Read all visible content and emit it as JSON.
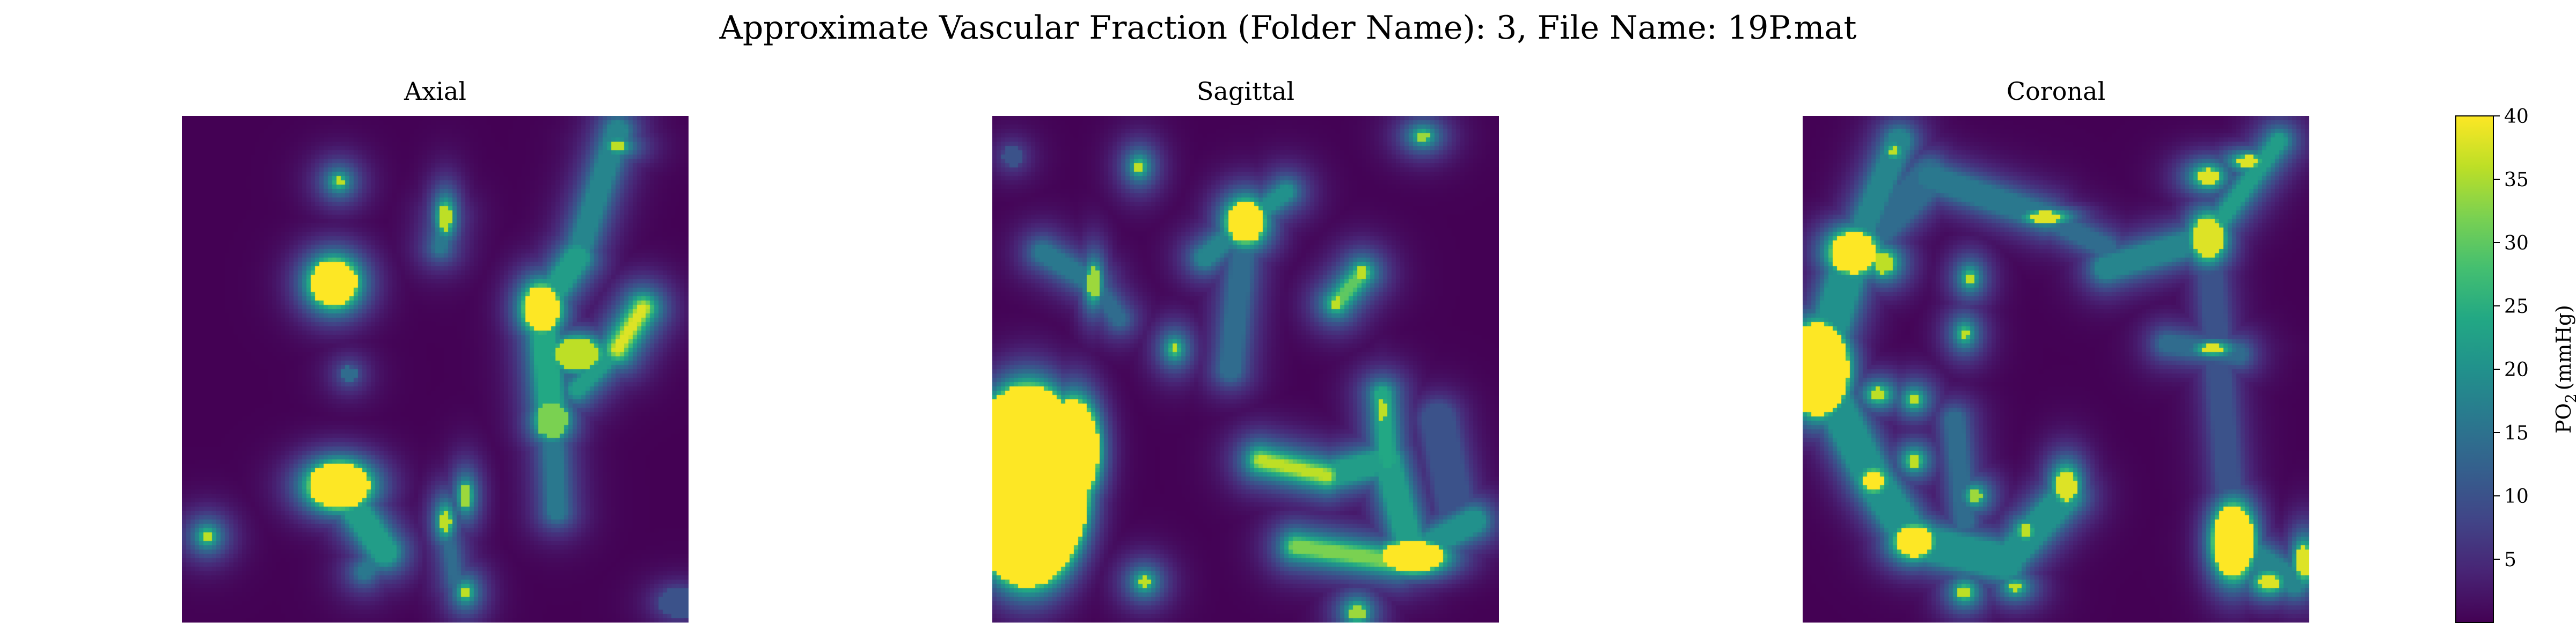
{
  "chart_data": {
    "type": "heatmap",
    "title": "Approximate Vascular Fraction (Folder Name): 3, File Name: 19P.mat",
    "panels": [
      {
        "title": "Axial",
        "blobs": [
          {
            "x": 0.3,
            "y": 0.33,
            "rx": 0.045,
            "ry": 0.045,
            "v": 40
          },
          {
            "x": 0.31,
            "y": 0.73,
            "rx": 0.06,
            "ry": 0.045,
            "v": 40
          },
          {
            "x": 0.71,
            "y": 0.38,
            "rx": 0.035,
            "ry": 0.045,
            "v": 40
          },
          {
            "x": 0.78,
            "y": 0.47,
            "rx": 0.045,
            "ry": 0.03,
            "v": 36
          },
          {
            "x": 0.73,
            "y": 0.6,
            "rx": 0.03,
            "ry": 0.035,
            "v": 32
          },
          {
            "x": 0.52,
            "y": 0.2,
            "rx": 0.012,
            "ry": 0.025,
            "v": 36
          },
          {
            "x": 0.31,
            "y": 0.13,
            "rx": 0.008,
            "ry": 0.008,
            "v": 36
          },
          {
            "x": 0.86,
            "y": 0.06,
            "rx": 0.012,
            "ry": 0.008,
            "v": 36
          },
          {
            "x": 0.05,
            "y": 0.83,
            "rx": 0.01,
            "ry": 0.01,
            "v": 36
          },
          {
            "x": 0.52,
            "y": 0.8,
            "rx": 0.01,
            "ry": 0.02,
            "v": 36
          },
          {
            "x": 0.56,
            "y": 0.75,
            "rx": 0.01,
            "ry": 0.02,
            "v": 34
          },
          {
            "x": 0.56,
            "y": 0.94,
            "rx": 0.008,
            "ry": 0.01,
            "v": 36
          },
          {
            "x": 0.33,
            "y": 0.51,
            "rx": 0.015,
            "ry": 0.015,
            "v": 14
          },
          {
            "x": 0.98,
            "y": 0.96,
            "rx": 0.04,
            "ry": 0.03,
            "v": 10
          }
        ],
        "lines": [
          {
            "x1": 0.86,
            "y1": 0.03,
            "x2": 0.78,
            "y2": 0.28,
            "w": 0.018,
            "v": 18
          },
          {
            "x1": 0.78,
            "y1": 0.28,
            "x2": 0.71,
            "y2": 0.38,
            "w": 0.02,
            "v": 22
          },
          {
            "x1": 0.71,
            "y1": 0.38,
            "x2": 0.73,
            "y2": 0.6,
            "w": 0.02,
            "v": 24
          },
          {
            "x1": 0.73,
            "y1": 0.6,
            "x2": 0.74,
            "y2": 0.78,
            "w": 0.015,
            "v": 16
          },
          {
            "x1": 0.91,
            "y1": 0.38,
            "x2": 0.86,
            "y2": 0.46,
            "w": 0.008,
            "v": 38
          },
          {
            "x1": 0.86,
            "y1": 0.46,
            "x2": 0.78,
            "y2": 0.54,
            "w": 0.012,
            "v": 22
          },
          {
            "x1": 0.31,
            "y1": 0.73,
            "x2": 0.4,
            "y2": 0.86,
            "w": 0.022,
            "v": 22
          },
          {
            "x1": 0.4,
            "y1": 0.86,
            "x2": 0.36,
            "y2": 0.9,
            "w": 0.012,
            "v": 16
          },
          {
            "x1": 0.52,
            "y1": 0.2,
            "x2": 0.51,
            "y2": 0.26,
            "w": 0.01,
            "v": 16
          },
          {
            "x1": 0.52,
            "y1": 0.8,
            "x2": 0.54,
            "y2": 0.92,
            "w": 0.008,
            "v": 14
          }
        ]
      },
      {
        "title": "Sagittal",
        "blobs": [
          {
            "x": 0.07,
            "y": 0.73,
            "rx": 0.12,
            "ry": 0.2,
            "v": 40
          },
          {
            "x": 0.16,
            "y": 0.66,
            "rx": 0.05,
            "ry": 0.1,
            "v": 40
          },
          {
            "x": 0.5,
            "y": 0.21,
            "rx": 0.035,
            "ry": 0.04,
            "v": 40
          },
          {
            "x": 0.2,
            "y": 0.33,
            "rx": 0.012,
            "ry": 0.03,
            "v": 34
          },
          {
            "x": 0.29,
            "y": 0.1,
            "rx": 0.008,
            "ry": 0.01,
            "v": 36
          },
          {
            "x": 0.85,
            "y": 0.04,
            "rx": 0.012,
            "ry": 0.01,
            "v": 34
          },
          {
            "x": 0.73,
            "y": 0.31,
            "rx": 0.01,
            "ry": 0.012,
            "v": 36
          },
          {
            "x": 0.68,
            "y": 0.37,
            "rx": 0.01,
            "ry": 0.012,
            "v": 36
          },
          {
            "x": 0.36,
            "y": 0.46,
            "rx": 0.008,
            "ry": 0.01,
            "v": 36
          },
          {
            "x": 0.77,
            "y": 0.58,
            "rx": 0.008,
            "ry": 0.02,
            "v": 36
          },
          {
            "x": 0.83,
            "y": 0.87,
            "rx": 0.06,
            "ry": 0.03,
            "v": 40
          },
          {
            "x": 0.3,
            "y": 0.92,
            "rx": 0.01,
            "ry": 0.01,
            "v": 36
          },
          {
            "x": 0.72,
            "y": 0.98,
            "rx": 0.015,
            "ry": 0.015,
            "v": 34
          },
          {
            "x": 0.04,
            "y": 0.08,
            "rx": 0.02,
            "ry": 0.02,
            "v": 10
          }
        ],
        "lines": [
          {
            "x1": 0.1,
            "y1": 0.27,
            "x2": 0.2,
            "y2": 0.33,
            "w": 0.015,
            "v": 16
          },
          {
            "x1": 0.2,
            "y1": 0.33,
            "x2": 0.25,
            "y2": 0.4,
            "w": 0.012,
            "v": 14
          },
          {
            "x1": 0.42,
            "y1": 0.28,
            "x2": 0.5,
            "y2": 0.21,
            "w": 0.015,
            "v": 18
          },
          {
            "x1": 0.5,
            "y1": 0.21,
            "x2": 0.58,
            "y2": 0.15,
            "w": 0.012,
            "v": 20
          },
          {
            "x1": 0.5,
            "y1": 0.21,
            "x2": 0.47,
            "y2": 0.5,
            "w": 0.018,
            "v": 14
          },
          {
            "x1": 0.68,
            "y1": 0.37,
            "x2": 0.73,
            "y2": 0.31,
            "w": 0.008,
            "v": 30
          },
          {
            "x1": 0.53,
            "y1": 0.68,
            "x2": 0.66,
            "y2": 0.71,
            "w": 0.008,
            "v": 36
          },
          {
            "x1": 0.66,
            "y1": 0.71,
            "x2": 0.78,
            "y2": 0.68,
            "w": 0.02,
            "v": 22
          },
          {
            "x1": 0.78,
            "y1": 0.68,
            "x2": 0.77,
            "y2": 0.55,
            "w": 0.012,
            "v": 24
          },
          {
            "x1": 0.78,
            "y1": 0.68,
            "x2": 0.83,
            "y2": 0.87,
            "w": 0.022,
            "v": 22
          },
          {
            "x1": 0.6,
            "y1": 0.85,
            "x2": 0.8,
            "y2": 0.88,
            "w": 0.01,
            "v": 32
          },
          {
            "x1": 0.8,
            "y1": 0.88,
            "x2": 0.95,
            "y2": 0.8,
            "w": 0.02,
            "v": 20
          },
          {
            "x1": 0.88,
            "y1": 0.6,
            "x2": 0.92,
            "y2": 0.8,
            "w": 0.03,
            "v": 10
          }
        ]
      },
      {
        "title": "Coronal",
        "blobs": [
          {
            "x": 0.03,
            "y": 0.5,
            "rx": 0.06,
            "ry": 0.09,
            "v": 40
          },
          {
            "x": 0.1,
            "y": 0.27,
            "rx": 0.045,
            "ry": 0.04,
            "v": 40
          },
          {
            "x": 0.16,
            "y": 0.29,
            "rx": 0.02,
            "ry": 0.02,
            "v": 36
          },
          {
            "x": 0.15,
            "y": 0.55,
            "rx": 0.015,
            "ry": 0.012,
            "v": 36
          },
          {
            "x": 0.22,
            "y": 0.56,
            "rx": 0.01,
            "ry": 0.01,
            "v": 36
          },
          {
            "x": 0.14,
            "y": 0.72,
            "rx": 0.02,
            "ry": 0.02,
            "v": 40
          },
          {
            "x": 0.22,
            "y": 0.68,
            "rx": 0.012,
            "ry": 0.012,
            "v": 36
          },
          {
            "x": 0.22,
            "y": 0.84,
            "rx": 0.035,
            "ry": 0.03,
            "v": 40
          },
          {
            "x": 0.32,
            "y": 0.94,
            "rx": 0.012,
            "ry": 0.012,
            "v": 36
          },
          {
            "x": 0.34,
            "y": 0.75,
            "rx": 0.012,
            "ry": 0.012,
            "v": 34
          },
          {
            "x": 0.44,
            "y": 0.82,
            "rx": 0.012,
            "ry": 0.012,
            "v": 36
          },
          {
            "x": 0.52,
            "y": 0.73,
            "rx": 0.02,
            "ry": 0.03,
            "v": 38
          },
          {
            "x": 0.33,
            "y": 0.32,
            "rx": 0.008,
            "ry": 0.01,
            "v": 36
          },
          {
            "x": 0.32,
            "y": 0.43,
            "rx": 0.008,
            "ry": 0.01,
            "v": 36
          },
          {
            "x": 0.18,
            "y": 0.07,
            "rx": 0.008,
            "ry": 0.008,
            "v": 36
          },
          {
            "x": 0.8,
            "y": 0.24,
            "rx": 0.03,
            "ry": 0.04,
            "v": 38
          },
          {
            "x": 0.8,
            "y": 0.12,
            "rx": 0.02,
            "ry": 0.015,
            "v": 38
          },
          {
            "x": 0.88,
            "y": 0.09,
            "rx": 0.02,
            "ry": 0.01,
            "v": 38
          },
          {
            "x": 0.48,
            "y": 0.2,
            "rx": 0.03,
            "ry": 0.01,
            "v": 38
          },
          {
            "x": 0.81,
            "y": 0.46,
            "rx": 0.02,
            "ry": 0.008,
            "v": 38
          },
          {
            "x": 0.85,
            "y": 0.84,
            "rx": 0.04,
            "ry": 0.07,
            "v": 40
          },
          {
            "x": 0.92,
            "y": 0.92,
            "rx": 0.02,
            "ry": 0.015,
            "v": 38
          },
          {
            "x": 0.99,
            "y": 0.88,
            "rx": 0.015,
            "ry": 0.03,
            "v": 38
          },
          {
            "x": 0.42,
            "y": 0.93,
            "rx": 0.01,
            "ry": 0.008,
            "v": 36
          }
        ],
        "lines": [
          {
            "x1": 0.19,
            "y1": 0.05,
            "x2": 0.1,
            "y2": 0.27,
            "w": 0.02,
            "v": 18
          },
          {
            "x1": 0.1,
            "y1": 0.27,
            "x2": 0.03,
            "y2": 0.5,
            "w": 0.03,
            "v": 20
          },
          {
            "x1": 0.03,
            "y1": 0.5,
            "x2": 0.14,
            "y2": 0.72,
            "w": 0.03,
            "v": 20
          },
          {
            "x1": 0.14,
            "y1": 0.72,
            "x2": 0.22,
            "y2": 0.84,
            "w": 0.03,
            "v": 20
          },
          {
            "x1": 0.22,
            "y1": 0.84,
            "x2": 0.4,
            "y2": 0.88,
            "w": 0.03,
            "v": 20
          },
          {
            "x1": 0.4,
            "y1": 0.88,
            "x2": 0.52,
            "y2": 0.75,
            "w": 0.025,
            "v": 20
          },
          {
            "x1": 0.1,
            "y1": 0.27,
            "x2": 0.25,
            "y2": 0.12,
            "w": 0.03,
            "v": 14
          },
          {
            "x1": 0.25,
            "y1": 0.12,
            "x2": 0.48,
            "y2": 0.2,
            "w": 0.02,
            "v": 16
          },
          {
            "x1": 0.48,
            "y1": 0.2,
            "x2": 0.6,
            "y2": 0.26,
            "w": 0.015,
            "v": 14
          },
          {
            "x1": 0.6,
            "y1": 0.3,
            "x2": 0.8,
            "y2": 0.24,
            "w": 0.02,
            "v": 18
          },
          {
            "x1": 0.8,
            "y1": 0.24,
            "x2": 0.94,
            "y2": 0.05,
            "w": 0.012,
            "v": 22
          },
          {
            "x1": 0.8,
            "y1": 0.24,
            "x2": 0.85,
            "y2": 0.84,
            "w": 0.02,
            "v": 10
          },
          {
            "x1": 0.72,
            "y1": 0.45,
            "x2": 0.86,
            "y2": 0.47,
            "w": 0.015,
            "v": 14
          },
          {
            "x1": 0.3,
            "y1": 0.6,
            "x2": 0.32,
            "y2": 0.8,
            "w": 0.015,
            "v": 14
          },
          {
            "x1": 0.85,
            "y1": 0.84,
            "x2": 0.97,
            "y2": 0.92,
            "w": 0.02,
            "v": 18
          }
        ]
      }
    ],
    "colorbar": {
      "label_main": "PO",
      "label_sub": "2",
      "label_unit": "(mmHg)",
      "vmin": 0,
      "vmax": 40,
      "ticks": [
        5,
        10,
        15,
        20,
        25,
        30,
        35,
        40
      ],
      "colormap": "viridis"
    }
  }
}
